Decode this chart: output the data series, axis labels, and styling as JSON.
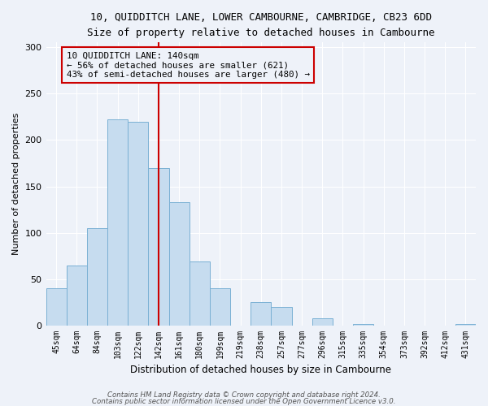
{
  "title": "10, QUIDDITCH LANE, LOWER CAMBOURNE, CAMBRIDGE, CB23 6DD",
  "subtitle": "Size of property relative to detached houses in Cambourne",
  "xlabel": "Distribution of detached houses by size in Cambourne",
  "ylabel": "Number of detached properties",
  "footnote1": "Contains HM Land Registry data © Crown copyright and database right 2024.",
  "footnote2": "Contains public sector information licensed under the Open Government Licence v3.0.",
  "bar_labels": [
    "45sqm",
    "64sqm",
    "84sqm",
    "103sqm",
    "122sqm",
    "142sqm",
    "161sqm",
    "180sqm",
    "199sqm",
    "219sqm",
    "238sqm",
    "257sqm",
    "277sqm",
    "296sqm",
    "315sqm",
    "335sqm",
    "354sqm",
    "373sqm",
    "392sqm",
    "412sqm",
    "431sqm"
  ],
  "bar_values": [
    40,
    65,
    105,
    222,
    220,
    170,
    133,
    69,
    40,
    0,
    25,
    20,
    0,
    8,
    0,
    2,
    0,
    0,
    0,
    0,
    2
  ],
  "bar_color": "#c6dcef",
  "bar_edge_color": "#7ab0d4",
  "property_line_color": "#cc0000",
  "annotation_title": "10 QUIDDITCH LANE: 140sqm",
  "annotation_line1": "← 56% of detached houses are smaller (621)",
  "annotation_line2": "43% of semi-detached houses are larger (480) →",
  "annotation_box_color": "#cc0000",
  "ylim": [
    0,
    305
  ],
  "yticks": [
    0,
    50,
    100,
    150,
    200,
    250,
    300
  ],
  "bg_color": "#eef2f9",
  "title_fontsize": 9,
  "subtitle_fontsize": 8.5
}
